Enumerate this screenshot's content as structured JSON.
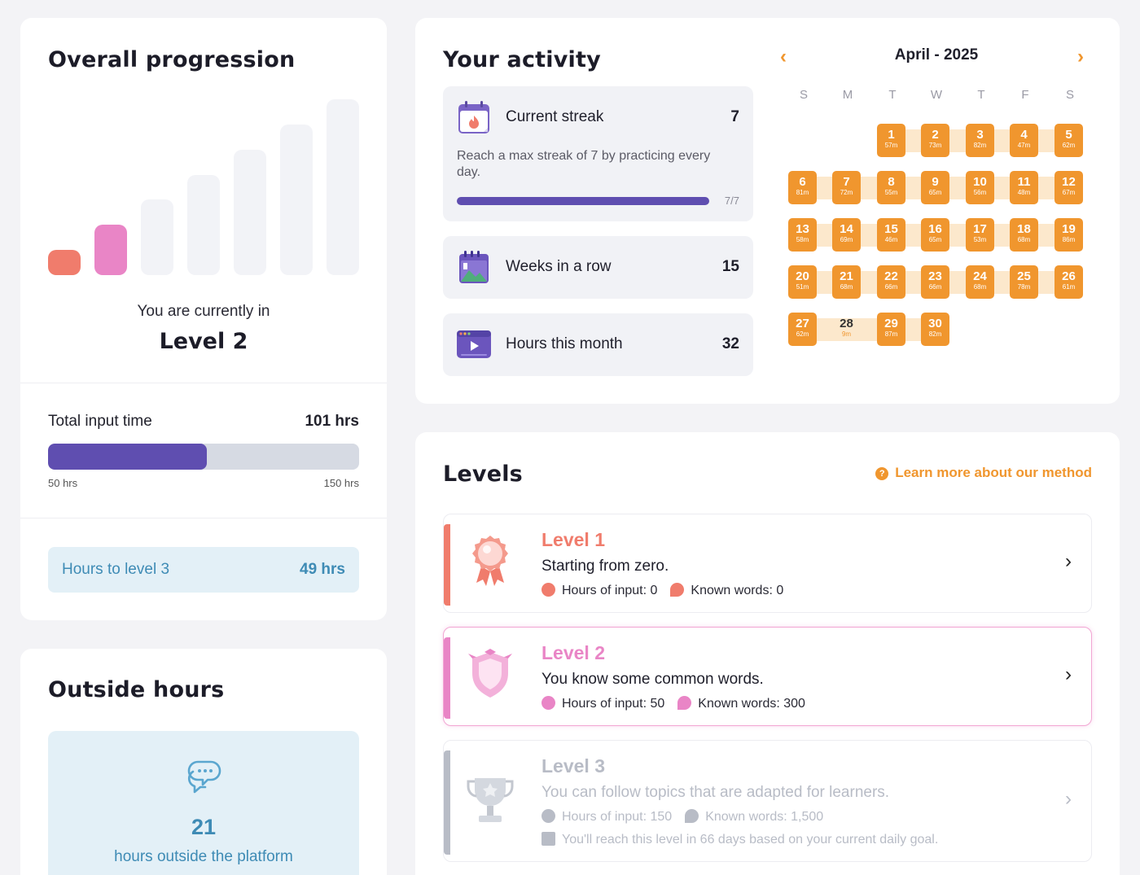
{
  "overall": {
    "title": "Overall progression",
    "bars": [
      {
        "level": 1,
        "color": "#f07c6c",
        "active": true
      },
      {
        "level": 2,
        "color": "#e985c6",
        "active": true
      },
      {
        "level": 3,
        "color": "#f2f3f7",
        "active": false
      },
      {
        "level": 4,
        "color": "#f2f3f7",
        "active": false
      },
      {
        "level": 5,
        "color": "#f2f3f7",
        "active": false
      },
      {
        "level": 6,
        "color": "#f2f3f7",
        "active": false
      },
      {
        "level": 7,
        "color": "#f2f3f7",
        "active": false
      }
    ],
    "currently_label": "You are currently in",
    "current_level": "Level 2",
    "total_label": "Total input time",
    "total_value": "101 hrs",
    "progress_fraction": 0.51,
    "range_start": "50 hrs",
    "range_end": "150 hrs",
    "next_label": "Hours to level 3",
    "next_value": "49 hrs"
  },
  "outside": {
    "title": "Outside hours",
    "icon": "chat-bubbles-icon",
    "value": "21",
    "label": "hours outside the platform"
  },
  "activity": {
    "title": "Your activity",
    "streak": {
      "label": "Current streak",
      "value": "7",
      "description": "Reach a max streak of 7 by practicing every day.",
      "fraction": "7/7",
      "icon": "calendar-flame-icon"
    },
    "weeks": {
      "label": "Weeks in a row",
      "value": "15",
      "icon": "calendar-icon"
    },
    "hours": {
      "label": "Hours this month",
      "value": "32",
      "icon": "video-player-icon"
    }
  },
  "calendar": {
    "title": "April - 2025",
    "prev": "‹",
    "next": "›",
    "weekdays": [
      "S",
      "M",
      "T",
      "W",
      "T",
      "F",
      "S"
    ],
    "start_weekday": 2,
    "days": [
      {
        "d": "1",
        "m": "57m",
        "goal": true
      },
      {
        "d": "2",
        "m": "73m",
        "goal": true
      },
      {
        "d": "3",
        "m": "82m",
        "goal": true
      },
      {
        "d": "4",
        "m": "47m",
        "goal": true
      },
      {
        "d": "5",
        "m": "62m",
        "goal": true
      },
      {
        "d": "6",
        "m": "81m",
        "goal": true
      },
      {
        "d": "7",
        "m": "72m",
        "goal": true
      },
      {
        "d": "8",
        "m": "55m",
        "goal": true
      },
      {
        "d": "9",
        "m": "65m",
        "goal": true
      },
      {
        "d": "10",
        "m": "56m",
        "goal": true
      },
      {
        "d": "11",
        "m": "48m",
        "goal": true
      },
      {
        "d": "12",
        "m": "67m",
        "goal": true
      },
      {
        "d": "13",
        "m": "58m",
        "goal": true
      },
      {
        "d": "14",
        "m": "69m",
        "goal": true
      },
      {
        "d": "15",
        "m": "46m",
        "goal": true
      },
      {
        "d": "16",
        "m": "65m",
        "goal": true
      },
      {
        "d": "17",
        "m": "53m",
        "goal": true
      },
      {
        "d": "18",
        "m": "68m",
        "goal": true
      },
      {
        "d": "19",
        "m": "86m",
        "goal": true
      },
      {
        "d": "20",
        "m": "51m",
        "goal": true
      },
      {
        "d": "21",
        "m": "68m",
        "goal": true
      },
      {
        "d": "22",
        "m": "66m",
        "goal": true
      },
      {
        "d": "23",
        "m": "66m",
        "goal": true
      },
      {
        "d": "24",
        "m": "68m",
        "goal": true
      },
      {
        "d": "25",
        "m": "78m",
        "goal": true
      },
      {
        "d": "26",
        "m": "61m",
        "goal": true
      },
      {
        "d": "27",
        "m": "62m",
        "goal": true
      },
      {
        "d": "28",
        "m": "9m",
        "goal": false
      },
      {
        "d": "29",
        "m": "87m",
        "goal": true
      },
      {
        "d": "30",
        "m": "82m",
        "goal": true
      }
    ]
  },
  "levels": {
    "title": "Levels",
    "learn_more": "Learn more about our method",
    "items": [
      {
        "title": "Level 1",
        "desc": "Starting from zero.",
        "hours": "Hours of input: 0",
        "words": "Known words: 0",
        "color": "#f07c6c",
        "emblem": "medal-icon"
      },
      {
        "title": "Level 2",
        "desc": "You know some common words.",
        "hours": "Hours of input: 50",
        "words": "Known words: 300",
        "color": "#e985c6",
        "emblem": "shield-icon"
      },
      {
        "title": "Level 3",
        "desc": "You can follow topics that are adapted for learners.",
        "hours": "Hours of input: 150",
        "words": "Known words: 1,500",
        "note": "You'll reach this level in 66 days based on your current daily goal.",
        "color": "#b8bcc6",
        "emblem": "trophy-icon"
      }
    ],
    "chevron": "›"
  }
}
